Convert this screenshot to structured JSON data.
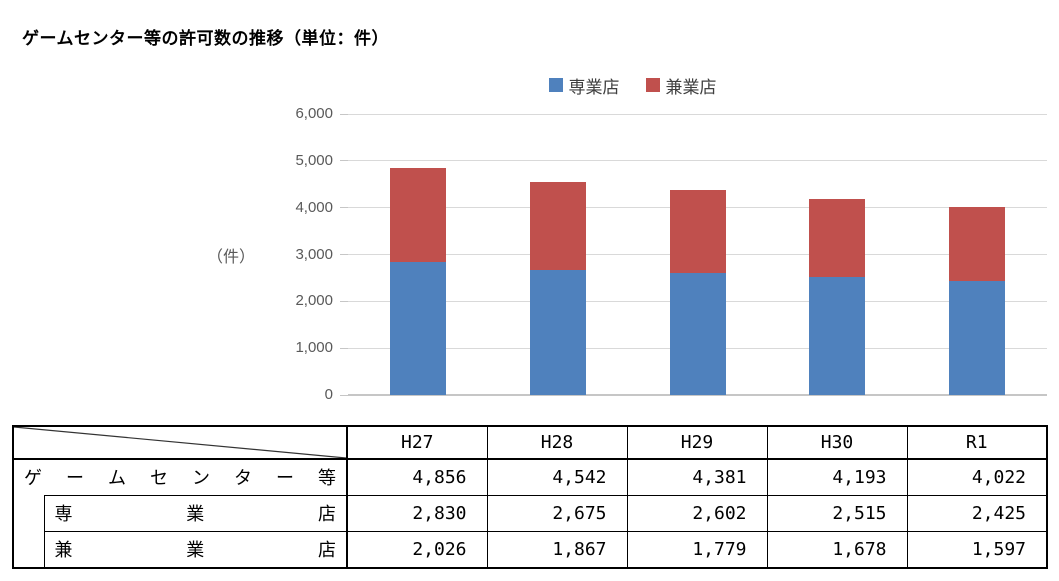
{
  "chart_data": {
    "type": "bar",
    "stacked": true,
    "title": "ゲームセンター等の許可数の推移（単位：件）",
    "ylabel": "（件）",
    "categories": [
      "H27",
      "H28",
      "H29",
      "H30",
      "R1"
    ],
    "series": [
      {
        "name": "専業店",
        "color": "#4f81bd",
        "values": [
          2830,
          2675,
          2602,
          2515,
          2425
        ]
      },
      {
        "name": "兼業店",
        "color": "#c0504d",
        "values": [
          2026,
          1867,
          1779,
          1678,
          1597
        ]
      }
    ],
    "totals": [
      4856,
      4542,
      4381,
      4193,
      4022
    ],
    "ylim": [
      0,
      6000
    ],
    "yticks": [
      0,
      1000,
      2000,
      3000,
      4000,
      5000,
      6000
    ],
    "ytick_labels": [
      "0",
      "1,000",
      "2,000",
      "3,000",
      "4,000",
      "5,000",
      "6,000"
    ],
    "grid": true,
    "legend_position": "top"
  },
  "table": {
    "header": [
      "",
      "H27",
      "H28",
      "H29",
      "H30",
      "R1"
    ],
    "rows": [
      {
        "label": "ゲームセンター等",
        "indent": false,
        "values": [
          "4,856",
          "4,542",
          "4,381",
          "4,193",
          "4,022"
        ]
      },
      {
        "label": "専業店",
        "indent": true,
        "values": [
          "2,830",
          "2,675",
          "2,602",
          "2,515",
          "2,425"
        ]
      },
      {
        "label": "兼業店",
        "indent": true,
        "values": [
          "2,026",
          "1,867",
          "1,779",
          "1,678",
          "1,597"
        ]
      }
    ]
  }
}
